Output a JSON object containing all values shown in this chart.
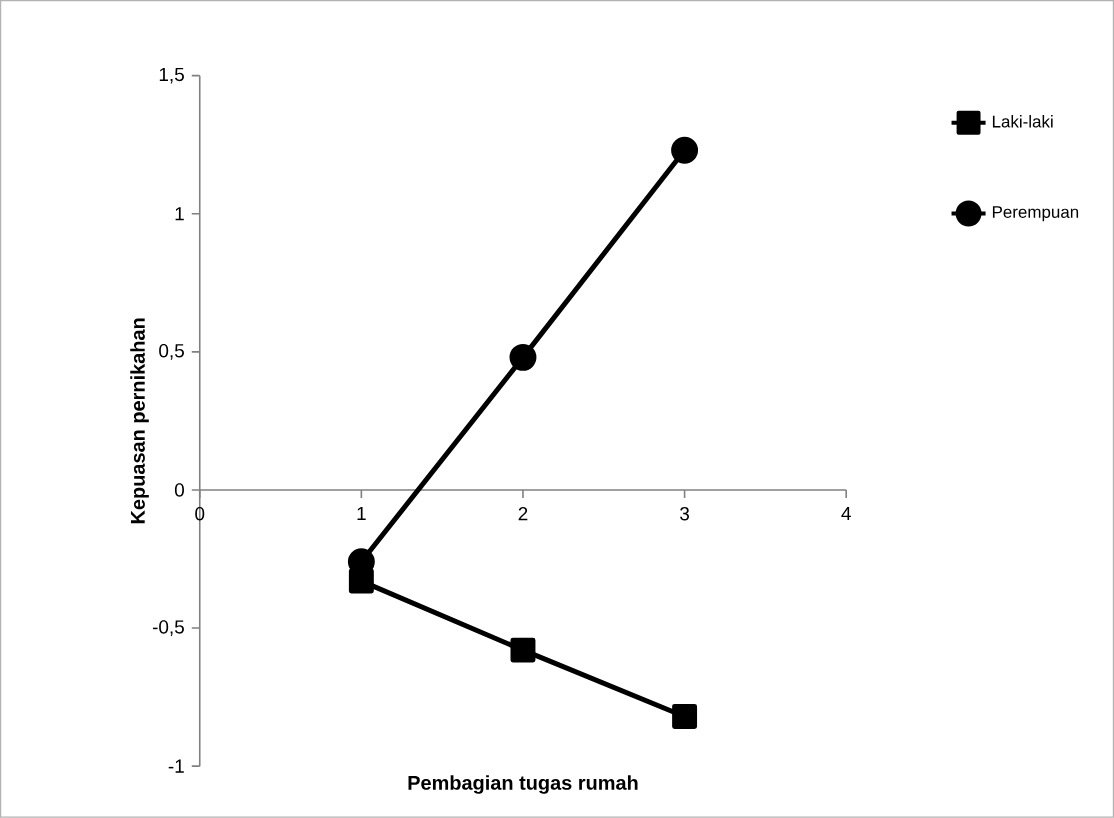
{
  "chart_data": {
    "type": "line",
    "xlabel": "Pembagian tugas rumah",
    "ylabel": "Kepuasan pernikahan",
    "x": [
      1,
      2,
      3
    ],
    "series": [
      {
        "name": "Laki-laki",
        "color": "#000000",
        "marker": "square",
        "values": [
          -0.33,
          -0.58,
          -0.82
        ]
      },
      {
        "name": "Perempuan",
        "color": "#000000",
        "marker": "circle",
        "values": [
          -0.26,
          0.48,
          1.23
        ]
      }
    ],
    "xlim": [
      0,
      4
    ],
    "xticks": [
      0,
      1,
      2,
      3,
      4
    ],
    "ylim": [
      -1,
      1.5
    ],
    "yticks": [
      -1,
      {
        "value": -0.5,
        "label": "-0,5"
      },
      0,
      {
        "value": 0.5,
        "label": "0,5"
      },
      1,
      {
        "value": 1.5,
        "label": "1,5"
      }
    ],
    "grid": false,
    "legend": "right",
    "line_style": "solid"
  }
}
